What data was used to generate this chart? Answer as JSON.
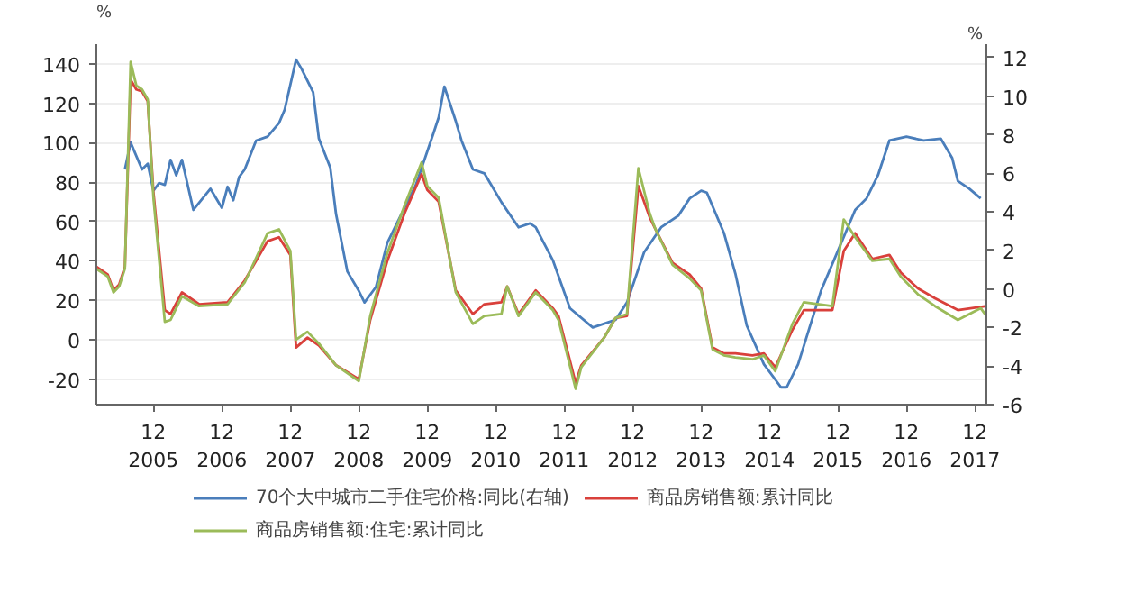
{
  "chart_data": {
    "type": "line",
    "ylabel": "%",
    "y2label": "%",
    "xlim": [
      "2005-02",
      "2018-02"
    ],
    "xticks": [
      {
        "value": "2005-12",
        "label": "12\n2005"
      },
      {
        "value": "2006-12",
        "label": "12\n2006"
      },
      {
        "value": "2007-12",
        "label": "12\n2007"
      },
      {
        "value": "2008-12",
        "label": "12\n2008"
      },
      {
        "value": "2009-12",
        "label": "12\n2009"
      },
      {
        "value": "2010-12",
        "label": "12\n2010"
      },
      {
        "value": "2011-12",
        "label": "12\n2011"
      },
      {
        "value": "2012-12",
        "label": "12\n2012"
      },
      {
        "value": "2013-12",
        "label": "12\n2013"
      },
      {
        "value": "2014-12",
        "label": "12\n2014"
      },
      {
        "value": "2015-12",
        "label": "12\n2015"
      },
      {
        "value": "2016-12",
        "label": "12\n2016"
      },
      {
        "value": "2017-12",
        "label": "12\n2017"
      }
    ],
    "ylim": [
      -33,
      150
    ],
    "yticks": [
      -20,
      0,
      20,
      40,
      60,
      80,
      100,
      120,
      140
    ],
    "y2lim": [
      -6,
      12.7
    ],
    "y2ticks": [
      -6,
      -4,
      -2,
      0,
      2,
      4,
      6,
      8,
      10,
      12
    ],
    "grid": "y",
    "legend": "bottom",
    "marker": "none",
    "line_style": "solid",
    "series": [
      {
        "name": "70个大中城市二手住宅价格:同比(右轴)",
        "color": "#4a7ebb",
        "axis": "y2",
        "x": [
          "2005-07",
          "2005-08",
          "2005-10",
          "2005-11",
          "2005-12",
          "2006-01",
          "2006-02",
          "2006-03",
          "2006-04",
          "2006-05",
          "2006-07",
          "2006-10",
          "2006-12",
          "2007-01",
          "2007-02",
          "2007-03",
          "2007-04",
          "2007-06",
          "2007-08",
          "2007-10",
          "2007-11",
          "2008-01",
          "2008-02",
          "2008-04",
          "2008-05",
          "2008-07",
          "2008-08",
          "2008-10",
          "2008-12",
          "2009-01",
          "2009-03",
          "2009-05",
          "2009-07",
          "2009-10",
          "2010-01",
          "2010-02",
          "2010-03",
          "2010-05",
          "2010-06",
          "2010-08",
          "2010-10",
          "2011-01",
          "2011-04",
          "2011-06",
          "2011-07",
          "2011-10",
          "2012-01",
          "2012-05",
          "2012-09",
          "2012-11",
          "2013-02",
          "2013-05",
          "2013-08",
          "2013-10",
          "2013-12",
          "2014-01",
          "2014-04",
          "2014-06",
          "2014-08",
          "2014-11",
          "2015-02",
          "2015-03",
          "2015-05",
          "2015-09",
          "2015-12",
          "2016-03",
          "2016-05",
          "2016-07",
          "2016-09",
          "2016-12",
          "2017-03",
          "2017-06",
          "2017-08",
          "2017-09",
          "2017-11",
          "2018-01"
        ],
        "values": [
          6.2,
          7.6,
          6.2,
          6.5,
          5.1,
          5.5,
          5.4,
          6.7,
          5.9,
          6.7,
          4.1,
          5.2,
          4.2,
          5.3,
          4.6,
          5.8,
          6.2,
          7.7,
          7.9,
          8.6,
          9.3,
          11.9,
          11.4,
          10.2,
          7.8,
          6.3,
          3.9,
          0.9,
          -0.1,
          -0.7,
          0.1,
          2.4,
          3.6,
          5.4,
          8.0,
          8.9,
          10.5,
          8.7,
          7.7,
          6.2,
          6.0,
          4.5,
          3.2,
          3.4,
          3.2,
          1.5,
          -1.0,
          -2.0,
          -1.6,
          -0.7,
          1.9,
          3.2,
          3.8,
          4.7,
          5.1,
          5.0,
          2.9,
          0.8,
          -1.9,
          -3.9,
          -5.1,
          -5.1,
          -3.9,
          -0.1,
          2.0,
          4.1,
          4.7,
          5.9,
          7.7,
          7.9,
          7.7,
          7.8,
          6.8,
          5.6,
          5.2,
          4.7
        ]
      },
      {
        "name": "商品房销售额:累计同比",
        "color": "#d9403b",
        "x": [
          "2005-02",
          "2005-04",
          "2005-05",
          "2005-06",
          "2005-07",
          "2005-08",
          "2005-09",
          "2005-10",
          "2005-11",
          "2005-12",
          "2006-02",
          "2006-03",
          "2006-05",
          "2006-08",
          "2007-01",
          "2007-04",
          "2007-08",
          "2007-10",
          "2007-12",
          "2008-01",
          "2008-03",
          "2008-05",
          "2008-08",
          "2008-12",
          "2009-02",
          "2009-05",
          "2009-08",
          "2009-11",
          "2009-12",
          "2010-02",
          "2010-03",
          "2010-05",
          "2010-08",
          "2010-10",
          "2011-01",
          "2011-02",
          "2011-04",
          "2011-07",
          "2011-10",
          "2011-11",
          "2012-02",
          "2012-03",
          "2012-07",
          "2012-09",
          "2012-11",
          "2013-01",
          "2013-03",
          "2013-04",
          "2013-07",
          "2013-10",
          "2013-12",
          "2014-02",
          "2014-04",
          "2014-06",
          "2014-09",
          "2014-11",
          "2015-01",
          "2015-04",
          "2015-06",
          "2015-11",
          "2016-01",
          "2016-03",
          "2016-06",
          "2016-09",
          "2016-11",
          "2017-02",
          "2017-05",
          "2017-09",
          "2018-02"
        ],
        "values": [
          37,
          33,
          25,
          28,
          37,
          132,
          127,
          126,
          121,
          75,
          15,
          13,
          24,
          18,
          19,
          30,
          50,
          52,
          43,
          -4,
          1,
          -3,
          -13,
          -20,
          10,
          40,
          64,
          84,
          76,
          70,
          55,
          25,
          13,
          18,
          19,
          27,
          13,
          25,
          16,
          12,
          -22,
          -13,
          1,
          11,
          12,
          78,
          62,
          56,
          39,
          33,
          26,
          -4,
          -7,
          -7,
          -8,
          -7,
          -14,
          5,
          15,
          15,
          45,
          54,
          41,
          43,
          34,
          26,
          21,
          15,
          17
        ]
      },
      {
        "name": "商品房销售额:住宅:累计同比",
        "color": "#9bbb59",
        "x": [
          "2005-02",
          "2005-04",
          "2005-05",
          "2005-06",
          "2005-07",
          "2005-08",
          "2005-09",
          "2005-10",
          "2005-11",
          "2005-12",
          "2006-02",
          "2006-03",
          "2006-05",
          "2006-08",
          "2007-01",
          "2007-04",
          "2007-08",
          "2007-10",
          "2007-12",
          "2008-01",
          "2008-03",
          "2008-05",
          "2008-08",
          "2008-12",
          "2009-02",
          "2009-05",
          "2009-08",
          "2009-11",
          "2009-12",
          "2010-02",
          "2010-03",
          "2010-05",
          "2010-08",
          "2010-10",
          "2011-01",
          "2011-02",
          "2011-04",
          "2011-07",
          "2011-10",
          "2011-11",
          "2012-02",
          "2012-03",
          "2012-07",
          "2012-09",
          "2012-11",
          "2013-01",
          "2013-03",
          "2013-04",
          "2013-07",
          "2013-10",
          "2013-12",
          "2014-02",
          "2014-04",
          "2014-06",
          "2014-09",
          "2014-11",
          "2015-01",
          "2015-04",
          "2015-06",
          "2015-11",
          "2016-01",
          "2016-03",
          "2016-06",
          "2016-09",
          "2016-11",
          "2017-02",
          "2017-05",
          "2017-09",
          "2018-01",
          "2018-02"
        ],
        "values": [
          36,
          32,
          24,
          27,
          36,
          141,
          129,
          127,
          122,
          72,
          9,
          10,
          22,
          17,
          18,
          29,
          54,
          56,
          45,
          0,
          4,
          -2,
          -13,
          -21,
          12,
          44,
          68,
          90,
          78,
          72,
          56,
          24,
          8,
          12,
          13,
          27,
          12,
          24,
          15,
          10,
          -25,
          -14,
          1,
          11,
          13,
          87,
          64,
          56,
          38,
          31,
          25,
          -5,
          -8,
          -9,
          -10,
          -8,
          -16,
          8,
          19,
          17,
          61,
          52,
          40,
          41,
          32,
          23,
          17,
          10,
          16,
          12
        ]
      }
    ]
  }
}
